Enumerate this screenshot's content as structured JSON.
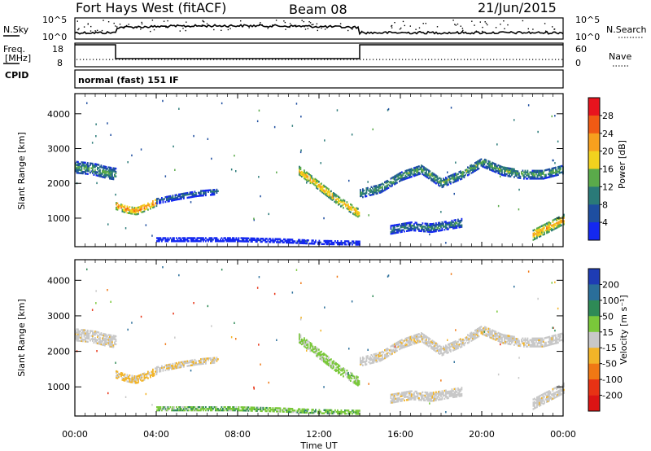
{
  "header": {
    "station": "Fort Hays West (fitACF)",
    "beam": "Beam 08",
    "date": "21/Jun/2015"
  },
  "noise_panel": {
    "left_label": "N.Sky",
    "right_label": "N.Search",
    "left_ticks": [
      "10^5",
      "10^0"
    ],
    "right_ticks": [
      "10^5",
      "10^0"
    ]
  },
  "freq_panel": {
    "left_label_1": "Freq.",
    "left_label_2": "[MHz]",
    "cpid_label": "CPID",
    "right_label": "Nave",
    "left_ticks": [
      "18",
      "8"
    ],
    "right_ticks": [
      "60",
      "0"
    ]
  },
  "mode_text": "normal (fast) 151 IF",
  "power_panel": {
    "ylabel": "Slant Range [km]",
    "colorbar_label": "Power [dB]",
    "colorbar_ticks": [
      "28",
      "24",
      "20",
      "16",
      "12",
      "8",
      "4"
    ],
    "colorbar_colors": [
      "#e8141e",
      "#f05a14",
      "#f7a01e",
      "#f2d21e",
      "#5aaa4a",
      "#2a7a78",
      "#1e4ea0",
      "#1428f0"
    ]
  },
  "velocity_panel": {
    "ylabel": "Slant Range [km]",
    "colorbar_label": "Velocity [m s⁻¹]",
    "colorbar_ticks": [
      "200",
      "100",
      "50",
      "15",
      "-15",
      "-50",
      "-100",
      "-200"
    ],
    "colorbar_colors": [
      "#1e3cb4",
      "#2a6e9a",
      "#2e8a56",
      "#7ac83a",
      "#c8c8c8",
      "#f2b428",
      "#f07814",
      "#e83214",
      "#dc1414"
    ]
  },
  "time_axis": {
    "xlabel": "Time UT",
    "ticks": [
      "00:00",
      "04:00",
      "08:00",
      "12:00",
      "16:00",
      "20:00",
      "00:00"
    ]
  },
  "chart_data": {
    "type": "heatmap",
    "x_unit": "hours UT",
    "xlim": [
      0,
      24
    ],
    "y_unit": "km",
    "ylim": [
      180,
      4580
    ],
    "range_ticks": [
      1000,
      2000,
      3000,
      4000
    ],
    "frequency_segments_MHz": [
      {
        "start": 0,
        "end": 2.0,
        "value": 18
      },
      {
        "start": 2.0,
        "end": 14.0,
        "value": 8
      },
      {
        "start": 14.0,
        "end": 24,
        "value": 18
      }
    ],
    "nave_approx": 8,
    "scatter_bands": [
      {
        "name": "early",
        "t": [
          0,
          0.5,
          1.0,
          1.5,
          2.0
        ],
        "range": [
          2450,
          2420,
          2380,
          2300,
          2250
        ],
        "width": 320,
        "power_dB": 14,
        "velocity": -5
      },
      {
        "name": "morning-low",
        "t": [
          2.0,
          2.5,
          3.0,
          3.5,
          4.0
        ],
        "range": [
          1350,
          1250,
          1200,
          1320,
          1450
        ],
        "width": 220,
        "power_dB": 24,
        "velocity": -20
      },
      {
        "name": "morning-rise",
        "t": [
          4.0,
          5.0,
          6.0,
          7.0
        ],
        "range": [
          1480,
          1600,
          1700,
          1750
        ],
        "width": 160,
        "power_dB": 10,
        "velocity": -10
      },
      {
        "name": "near-range",
        "t": [
          4.0,
          6.0,
          8.0,
          10.0,
          12.0,
          14.0
        ],
        "range": [
          380,
          380,
          380,
          350,
          300,
          280
        ],
        "width": 120,
        "power_dB": 4,
        "velocity": 25
      },
      {
        "name": "descending-arc",
        "t": [
          11.0,
          12.0,
          13.0,
          14.0
        ],
        "range": [
          2350,
          1900,
          1450,
          1100
        ],
        "width": 230,
        "power_dB": 22,
        "velocity": 20
      },
      {
        "name": "afternoon-wave",
        "t": [
          14.0,
          15.0,
          16.0,
          17.0,
          18.0,
          19.0,
          20.0,
          21.0,
          22.0,
          23.0,
          24.0
        ],
        "range": [
          1700,
          1850,
          2200,
          2400,
          2000,
          2250,
          2600,
          2350,
          2250,
          2250,
          2400
        ],
        "width": 260,
        "power_dB": 14,
        "velocity": -5
      },
      {
        "name": "afternoon-low",
        "t": [
          15.5,
          16.5,
          17.5,
          18.5,
          19.0
        ],
        "range": [
          650,
          750,
          700,
          800,
          850
        ],
        "width": 230,
        "power_dB": 12,
        "velocity": -5
      },
      {
        "name": "late-low",
        "t": [
          22.5,
          23.0,
          23.5,
          24.0
        ],
        "range": [
          500,
          650,
          800,
          950
        ],
        "width": 280,
        "power_dB": 22,
        "velocity": -5
      }
    ]
  }
}
